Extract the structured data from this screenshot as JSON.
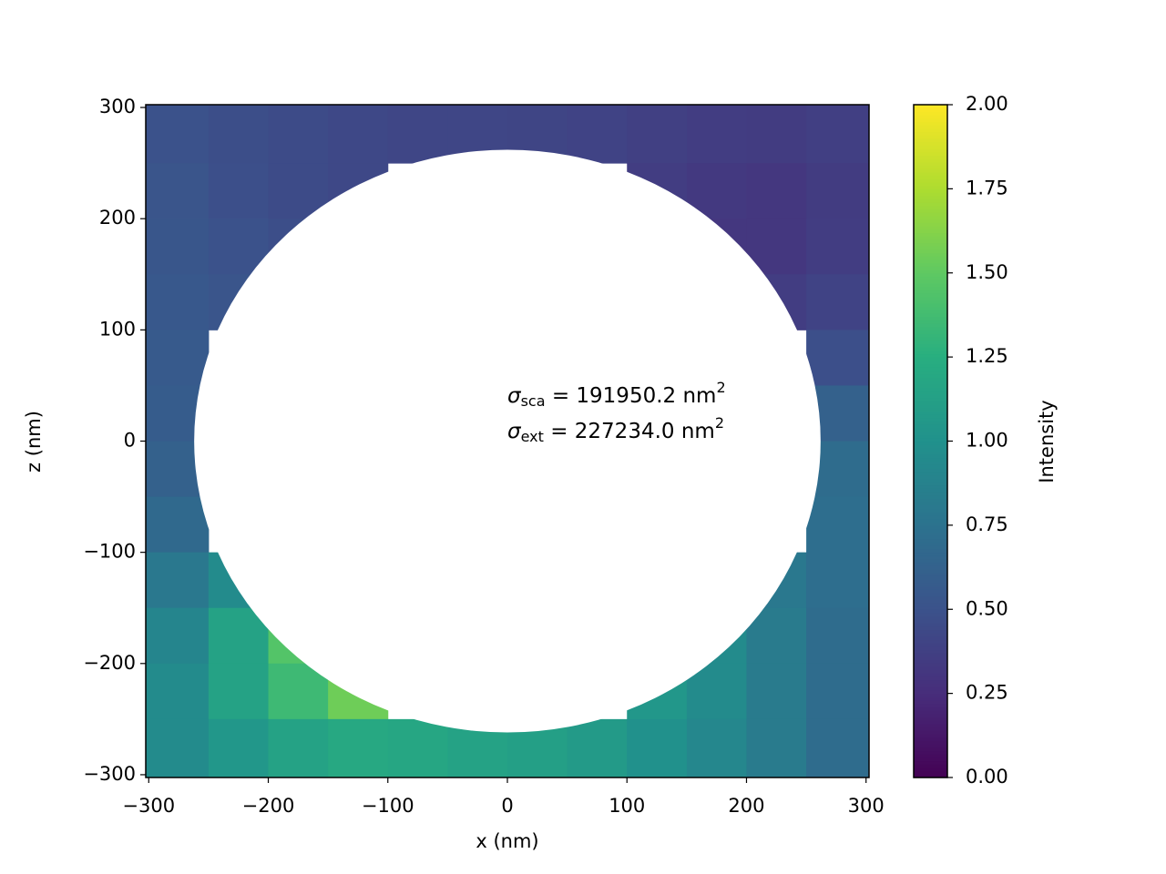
{
  "chart_data": {
    "type": "heatmap",
    "x_label": "x (nm)",
    "y_label": "z (nm)",
    "colorbar_label": "Intensity",
    "colormap": "viridis",
    "clim": [
      0,
      2
    ],
    "x": [
      -275,
      -225,
      -175,
      -125,
      -75,
      -25,
      25,
      75,
      125,
      175,
      225,
      275
    ],
    "y": [
      275,
      225,
      175,
      125,
      75,
      25,
      -25,
      -75,
      -125,
      -175,
      -225,
      -275
    ],
    "z": [
      [
        0.5,
        0.47,
        0.45,
        0.43,
        0.42,
        0.42,
        0.41,
        0.4,
        0.38,
        0.36,
        0.35,
        0.37
      ],
      [
        0.52,
        0.48,
        0.45,
        0.43,
        null,
        null,
        null,
        null,
        0.36,
        0.33,
        0.32,
        0.35
      ],
      [
        0.53,
        0.5,
        0.47,
        null,
        null,
        null,
        null,
        null,
        null,
        0.32,
        0.32,
        0.36
      ],
      [
        0.55,
        0.52,
        null,
        null,
        null,
        null,
        null,
        null,
        null,
        null,
        0.36,
        0.4
      ],
      [
        0.56,
        null,
        null,
        null,
        null,
        null,
        null,
        null,
        null,
        null,
        null,
        0.48
      ],
      [
        0.58,
        null,
        null,
        null,
        null,
        null,
        null,
        null,
        null,
        null,
        null,
        0.62
      ],
      [
        0.62,
        null,
        null,
        null,
        null,
        null,
        null,
        null,
        null,
        null,
        null,
        0.7
      ],
      [
        0.68,
        null,
        null,
        null,
        null,
        null,
        null,
        null,
        null,
        null,
        null,
        0.72
      ],
      [
        0.8,
        0.95,
        null,
        null,
        null,
        null,
        null,
        null,
        null,
        null,
        0.8,
        0.72
      ],
      [
        0.9,
        1.15,
        1.45,
        null,
        null,
        null,
        null,
        null,
        null,
        0.95,
        0.82,
        0.7
      ],
      [
        0.95,
        1.15,
        1.35,
        1.55,
        null,
        null,
        null,
        null,
        1.05,
        0.95,
        0.82,
        0.7
      ],
      [
        0.95,
        1.05,
        1.15,
        1.2,
        1.18,
        1.15,
        1.12,
        1.08,
        1.0,
        0.92,
        0.82,
        0.7
      ]
    ],
    "xlim": [
      -302.5,
      302.5
    ],
    "ylim": [
      -302.5,
      302.5
    ],
    "xticks": [
      {
        "value": -300,
        "label": "−300"
      },
      {
        "value": -200,
        "label": "−200"
      },
      {
        "value": -100,
        "label": "−100"
      },
      0,
      100,
      200,
      300
    ],
    "yticks": [
      {
        "value": -300,
        "label": "−300"
      },
      {
        "value": -200,
        "label": "−200"
      },
      {
        "value": -100,
        "label": "−100"
      },
      0,
      100,
      200,
      300
    ],
    "colorbar_ticks": [
      {
        "value": 0,
        "label": "0.00"
      },
      {
        "value": 0.25,
        "label": "0.25"
      },
      {
        "value": 0.5,
        "label": "0.50"
      },
      {
        "value": 0.75,
        "label": "0.75"
      },
      {
        "value": 1,
        "label": "1.00"
      },
      {
        "value": 1.25,
        "label": "1.25"
      },
      {
        "value": 1.5,
        "label": "1.50"
      },
      {
        "value": 1.75,
        "label": "1.75"
      },
      {
        "value": 2,
        "label": "2.00"
      }
    ],
    "annotations": [
      {
        "symbol": "σ",
        "sub": "sca",
        "text": " = 191950.2 nm",
        "sup": "2"
      },
      {
        "symbol": "σ",
        "sub": "ext",
        "text": " = 227234.0 nm",
        "sup": "2"
      }
    ]
  }
}
